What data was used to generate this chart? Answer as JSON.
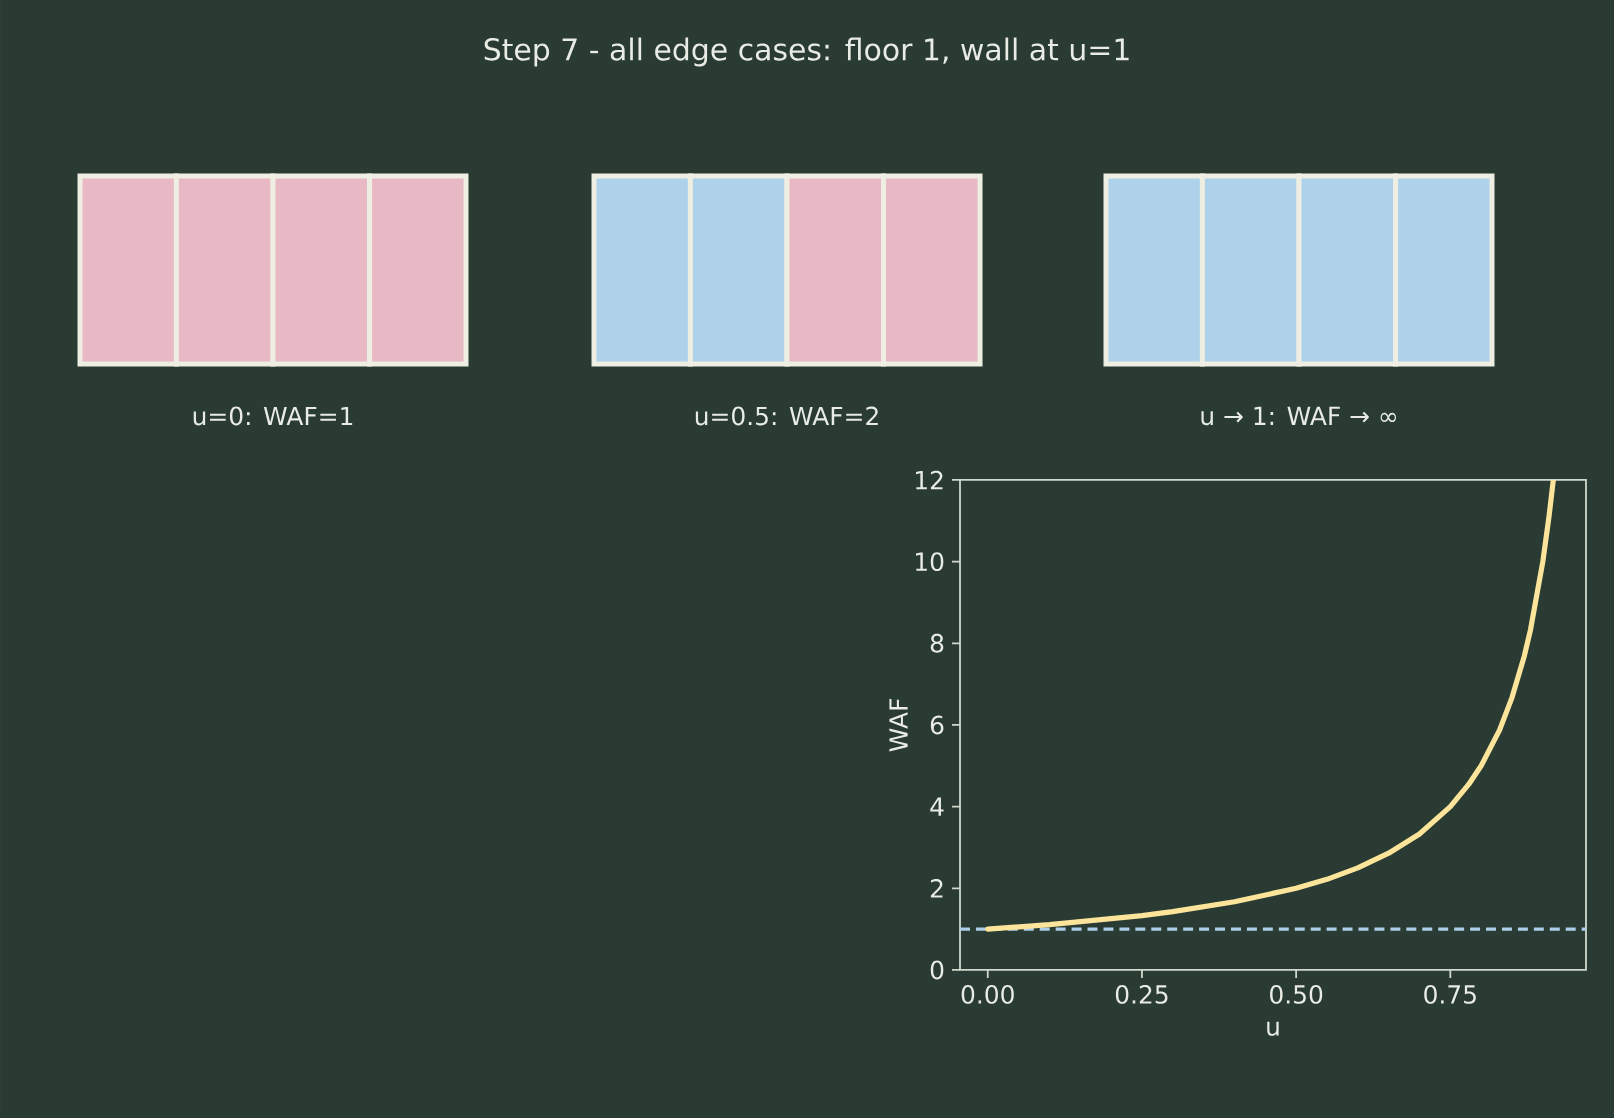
{
  "chart_data": {
    "type": "line",
    "title": "Step 7 - all edge cases: floor 1, wall at u=1",
    "xlabel": "u",
    "ylabel": "WAF",
    "x": [
      0,
      0.1,
      0.25,
      0.3,
      0.4,
      0.5,
      0.55,
      0.6,
      0.65,
      0.7,
      0.75,
      0.78,
      0.8,
      0.83,
      0.85,
      0.87,
      0.88,
      0.9,
      0.91,
      0.917
    ],
    "series": [
      {
        "color": "#fce49a",
        "values": [
          1,
          1.11,
          1.33,
          1.43,
          1.67,
          2,
          2.22,
          2.5,
          2.86,
          3.33,
          4,
          4.55,
          5,
          5.88,
          6.67,
          7.69,
          8.33,
          10,
          11.1,
          12
        ]
      }
    ],
    "xlim": [
      -0.045,
      0.97
    ],
    "ylim": [
      0,
      12
    ],
    "xticks": [
      {
        "value": 0,
        "label": "0.00"
      },
      {
        "value": 0.25,
        "label": "0.25"
      },
      {
        "value": 0.5,
        "label": "0.50"
      },
      {
        "value": 0.75,
        "label": "0.75"
      }
    ],
    "yticks": [
      0,
      2,
      4,
      6,
      8,
      10,
      12
    ],
    "ref_lines": [
      {
        "axis": "y",
        "value": 1,
        "color": "#aecde8",
        "line_style": "dashed"
      }
    ],
    "annotations": [
      "u=0: WAF=1",
      "u=0.5: WAF=2",
      "u → 1: WAF → ∞"
    ],
    "grid": false,
    "marker": "none",
    "line_style": "solid"
  }
}
